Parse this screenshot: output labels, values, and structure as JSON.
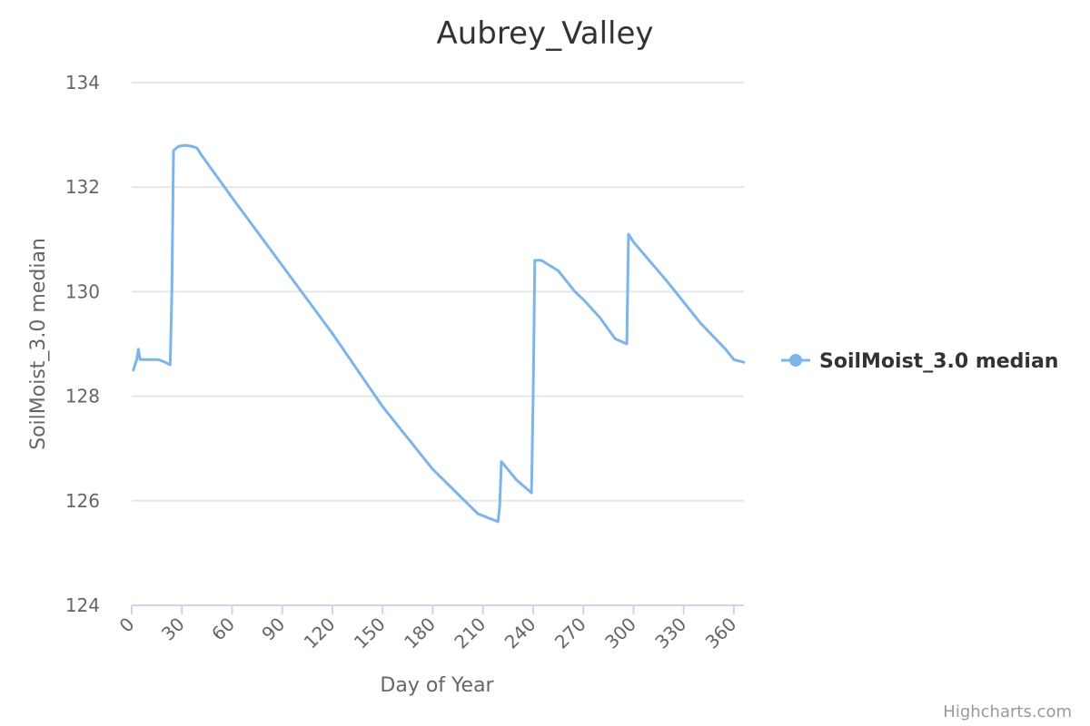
{
  "chart_data": {
    "type": "line",
    "title": "Aubrey_Valley",
    "xlabel": "Day of Year",
    "ylabel": "SoilMoist_3.0 median",
    "xlim": [
      0,
      366
    ],
    "ylim": [
      124,
      134
    ],
    "x_ticks": [
      0,
      30,
      60,
      90,
      120,
      150,
      180,
      210,
      240,
      270,
      300,
      330,
      360
    ],
    "y_ticks": [
      124,
      126,
      128,
      130,
      132,
      134
    ],
    "grid": true,
    "legend_position": "right",
    "series": [
      {
        "name": "SoilMoist_3.0 median",
        "color": "#7cb5ec",
        "points": [
          [
            1,
            128.5
          ],
          [
            2,
            128.6
          ],
          [
            3,
            128.7
          ],
          [
            4,
            128.9
          ],
          [
            5,
            128.7
          ],
          [
            8,
            128.7
          ],
          [
            12,
            128.7
          ],
          [
            16,
            128.7
          ],
          [
            20,
            128.65
          ],
          [
            23,
            128.6
          ],
          [
            24,
            130.0
          ],
          [
            25,
            132.7
          ],
          [
            28,
            132.78
          ],
          [
            32,
            132.8
          ],
          [
            36,
            132.78
          ],
          [
            39,
            132.75
          ],
          [
            42,
            132.6
          ],
          [
            60,
            131.8
          ],
          [
            90,
            130.5
          ],
          [
            120,
            129.2
          ],
          [
            150,
            127.8
          ],
          [
            180,
            126.6
          ],
          [
            207,
            125.75
          ],
          [
            219,
            125.6
          ],
          [
            220,
            125.9
          ],
          [
            221,
            126.75
          ],
          [
            230,
            126.4
          ],
          [
            239,
            126.15
          ],
          [
            240,
            128.0
          ],
          [
            241,
            130.6
          ],
          [
            245,
            130.6
          ],
          [
            250,
            130.5
          ],
          [
            255,
            130.4
          ],
          [
            260,
            130.2
          ],
          [
            265,
            130.0
          ],
          [
            270,
            129.85
          ],
          [
            280,
            129.5
          ],
          [
            289,
            129.1
          ],
          [
            296,
            129.0
          ],
          [
            297,
            131.1
          ],
          [
            300,
            130.95
          ],
          [
            320,
            130.2
          ],
          [
            340,
            129.4
          ],
          [
            355,
            128.9
          ],
          [
            360,
            128.7
          ],
          [
            366,
            128.65
          ]
        ]
      }
    ]
  },
  "credits": "Highcharts.com"
}
